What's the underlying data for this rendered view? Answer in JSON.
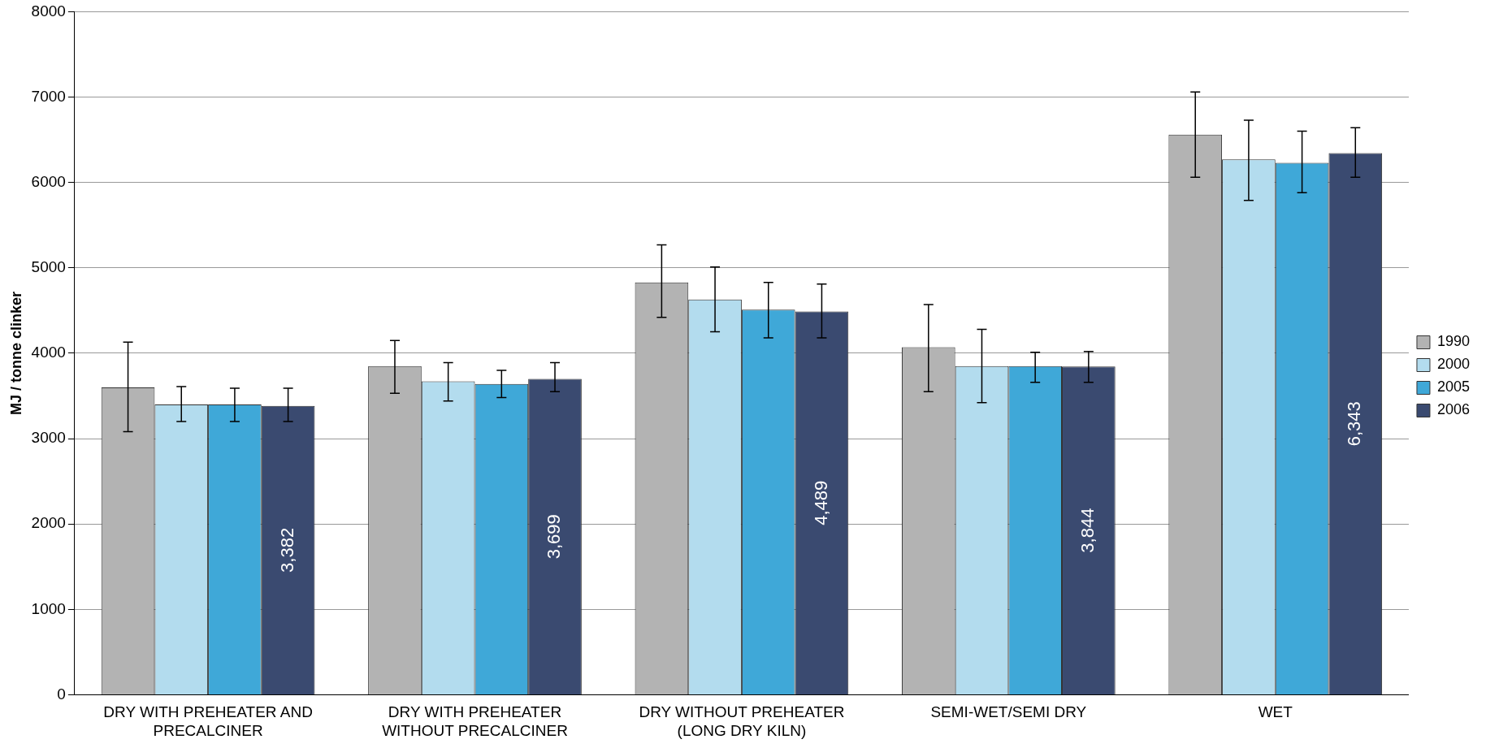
{
  "chart_data": {
    "type": "bar",
    "ylabel": "MJ / tonne clinker",
    "categories": [
      "DRY WITH PREHEATER AND PRECALCINER",
      "DRY WITH PREHEATER WITHOUT PRECALCINER",
      "DRY WITHOUT PREHEATER (LONG DRY KILN)",
      "SEMI-WET/SEMI DRY",
      "WET"
    ],
    "series": [
      {
        "name": "1990",
        "color": "#b3b3b3",
        "values": [
          3600,
          3850,
          4830,
          4070,
          6560
        ],
        "errors": [
          [
            3080,
            4130
          ],
          [
            3530,
            4150
          ],
          [
            4420,
            5270
          ],
          [
            3550,
            4570
          ],
          [
            6060,
            7060
          ]
        ]
      },
      {
        "name": "2000",
        "color": "#b3dcee",
        "values": [
          3400,
          3670,
          4630,
          3850,
          6270
        ],
        "errors": [
          [
            3200,
            3610
          ],
          [
            3440,
            3890
          ],
          [
            4250,
            5010
          ],
          [
            3420,
            4280
          ],
          [
            5790,
            6730
          ]
        ]
      },
      {
        "name": "2005",
        "color": "#3fa8d8",
        "values": [
          3400,
          3640,
          4510,
          3850,
          6230
        ],
        "errors": [
          [
            3200,
            3590
          ],
          [
            3480,
            3800
          ],
          [
            4180,
            4830
          ],
          [
            3660,
            4010
          ],
          [
            5880,
            6600
          ]
        ]
      },
      {
        "name": "2006",
        "color": "#3a4a70",
        "values": [
          3382,
          3699,
          4489,
          3844,
          6343
        ],
        "errors": [
          [
            3200,
            3590
          ],
          [
            3550,
            3890
          ],
          [
            4180,
            4810
          ],
          [
            3660,
            4020
          ],
          [
            6060,
            6640
          ]
        ],
        "value_labels": [
          "3,382",
          "3,699",
          "4,489",
          "3,844",
          "6,343"
        ]
      }
    ],
    "ylim": [
      0,
      8000
    ],
    "yticks": [
      0,
      1000,
      2000,
      3000,
      4000,
      5000,
      6000,
      7000,
      8000
    ],
    "grid": "y",
    "legend": "right"
  }
}
